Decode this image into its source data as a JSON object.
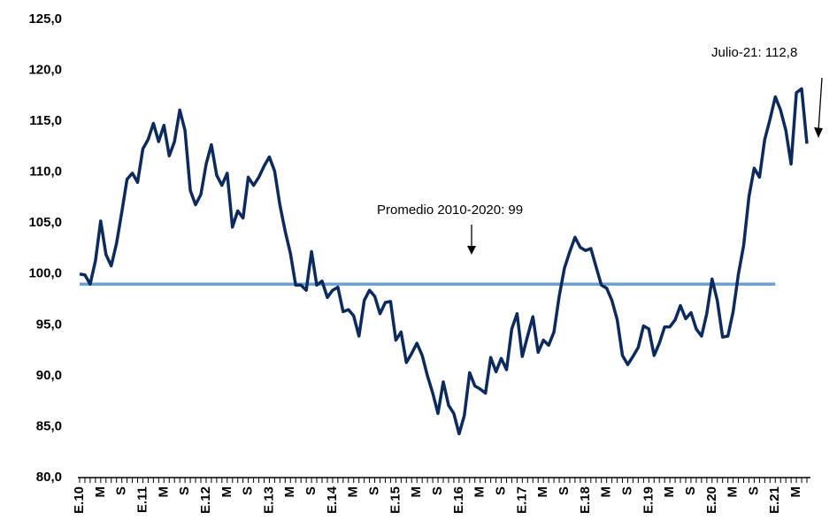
{
  "chart_data": {
    "type": "line",
    "categories": [
      "E.10",
      null,
      null,
      null,
      "M",
      null,
      null,
      null,
      "S",
      null,
      null,
      null,
      "E.11",
      null,
      null,
      null,
      "M",
      null,
      null,
      null,
      "S",
      null,
      null,
      null,
      "E.12",
      null,
      null,
      null,
      "M",
      null,
      null,
      null,
      "S",
      null,
      null,
      null,
      "E.13",
      null,
      null,
      null,
      "M",
      null,
      null,
      null,
      "S",
      null,
      null,
      null,
      "E.14",
      null,
      null,
      null,
      "M",
      null,
      null,
      null,
      "S",
      null,
      null,
      null,
      "E.15",
      null,
      null,
      null,
      "M",
      null,
      null,
      null,
      "S",
      null,
      null,
      null,
      "E.16",
      null,
      null,
      null,
      "M",
      null,
      null,
      null,
      "S",
      null,
      null,
      null,
      "E.17",
      null,
      null,
      null,
      "M",
      null,
      null,
      null,
      "S",
      null,
      null,
      null,
      "E.18",
      null,
      null,
      null,
      "M",
      null,
      null,
      null,
      "S",
      null,
      null,
      null,
      "E.19",
      null,
      null,
      null,
      "M",
      null,
      null,
      null,
      "S",
      null,
      null,
      null,
      "E.20",
      null,
      null,
      null,
      "M",
      null,
      null,
      null,
      "S",
      null,
      null,
      null,
      "E.21",
      null,
      null,
      null,
      "M",
      null,
      null
    ],
    "series": [
      {
        "color": "#0d2a5e",
        "values": [
          100.0,
          99.9,
          99.0,
          101.3,
          105.2,
          101.9,
          100.8,
          103.0,
          106.1,
          109.3,
          109.9,
          109.0,
          112.3,
          113.2,
          114.8,
          113.0,
          114.6,
          111.6,
          113.0,
          116.1,
          114.1,
          108.2,
          106.8,
          107.8,
          110.8,
          112.7,
          109.7,
          108.7,
          109.9,
          104.6,
          106.2,
          105.5,
          109.5,
          108.7,
          109.5,
          110.6,
          111.5,
          110.1,
          106.8,
          104.2,
          102.0,
          98.9,
          98.9,
          98.4,
          102.2,
          98.9,
          99.3,
          97.7,
          98.4,
          98.7,
          96.3,
          96.5,
          95.9,
          93.9,
          97.4,
          98.4,
          97.8,
          96.1,
          97.2,
          97.3,
          93.5,
          94.3,
          91.3,
          92.2,
          93.2,
          92.0,
          90.0,
          88.3,
          86.3,
          89.4,
          87.1,
          86.3,
          84.3,
          86.1,
          90.3,
          89.0,
          88.7,
          88.3,
          91.8,
          90.4,
          91.7,
          90.6,
          94.6,
          96.1,
          91.9,
          93.9,
          95.8,
          92.3,
          93.5,
          93.0,
          94.3,
          97.8,
          100.6,
          102.2,
          103.6,
          102.6,
          102.3,
          102.5,
          100.7,
          98.9,
          98.6,
          97.4,
          95.5,
          92.0,
          91.1,
          91.9,
          92.8,
          94.9,
          94.6,
          92.0,
          93.2,
          94.8,
          94.8,
          95.5,
          96.9,
          95.6,
          96.2,
          94.6,
          93.9,
          96.1,
          99.5,
          97.4,
          93.8,
          93.9,
          96.3,
          100.0,
          102.8,
          107.6,
          110.4,
          109.5,
          113.2,
          115.2,
          117.4,
          116.1,
          114.1,
          110.8,
          117.8,
          118.2,
          112.8
        ]
      },
      {
        "color": "#6a9fd8",
        "values": [
          99,
          99,
          99,
          99,
          99,
          99,
          99,
          99,
          99,
          99,
          99,
          99,
          99,
          99,
          99,
          99,
          99,
          99,
          99,
          99,
          99,
          99,
          99,
          99,
          99,
          99,
          99,
          99,
          99,
          99,
          99,
          99,
          99,
          99,
          99,
          99,
          99,
          99,
          99,
          99,
          99,
          99,
          99,
          99,
          99,
          99,
          99,
          99,
          99,
          99,
          99,
          99,
          99,
          99,
          99,
          99,
          99,
          99,
          99,
          99,
          99,
          99,
          99,
          99,
          99,
          99,
          99,
          99,
          99,
          99,
          99,
          99,
          99,
          99,
          99,
          99,
          99,
          99,
          99,
          99,
          99,
          99,
          99,
          99,
          99,
          99,
          99,
          99,
          99,
          99,
          99,
          99,
          99,
          99,
          99,
          99,
          99,
          99,
          99,
          99,
          99,
          99,
          99,
          99,
          99,
          99,
          99,
          99,
          99,
          99,
          99,
          99,
          99,
          99,
          99,
          99,
          99,
          99,
          99,
          99,
          99,
          99,
          99,
          99,
          99,
          99,
          99,
          99,
          99,
          99,
          99,
          99,
          99,
          null,
          null,
          null,
          null,
          null,
          null
        ]
      }
    ],
    "ylim": [
      80,
      125
    ],
    "yticks": [
      {
        "value": 80,
        "label": "80,0"
      },
      {
        "value": 85,
        "label": "85,0"
      },
      {
        "value": 90,
        "label": "90,0"
      },
      {
        "value": 95,
        "label": "95,0"
      },
      {
        "value": 100,
        "label": "100,0"
      },
      {
        "value": 105,
        "label": "105,0"
      },
      {
        "value": 110,
        "label": "110,0"
      },
      {
        "value": 115,
        "label": "115,0"
      },
      {
        "value": 120,
        "label": "120,0"
      },
      {
        "value": 125,
        "label": "125,0"
      }
    ],
    "annotations": [
      {
        "text": "Promedio 2010-2020: 99"
      },
      {
        "text": "Julio-21: 112,8"
      }
    ]
  }
}
